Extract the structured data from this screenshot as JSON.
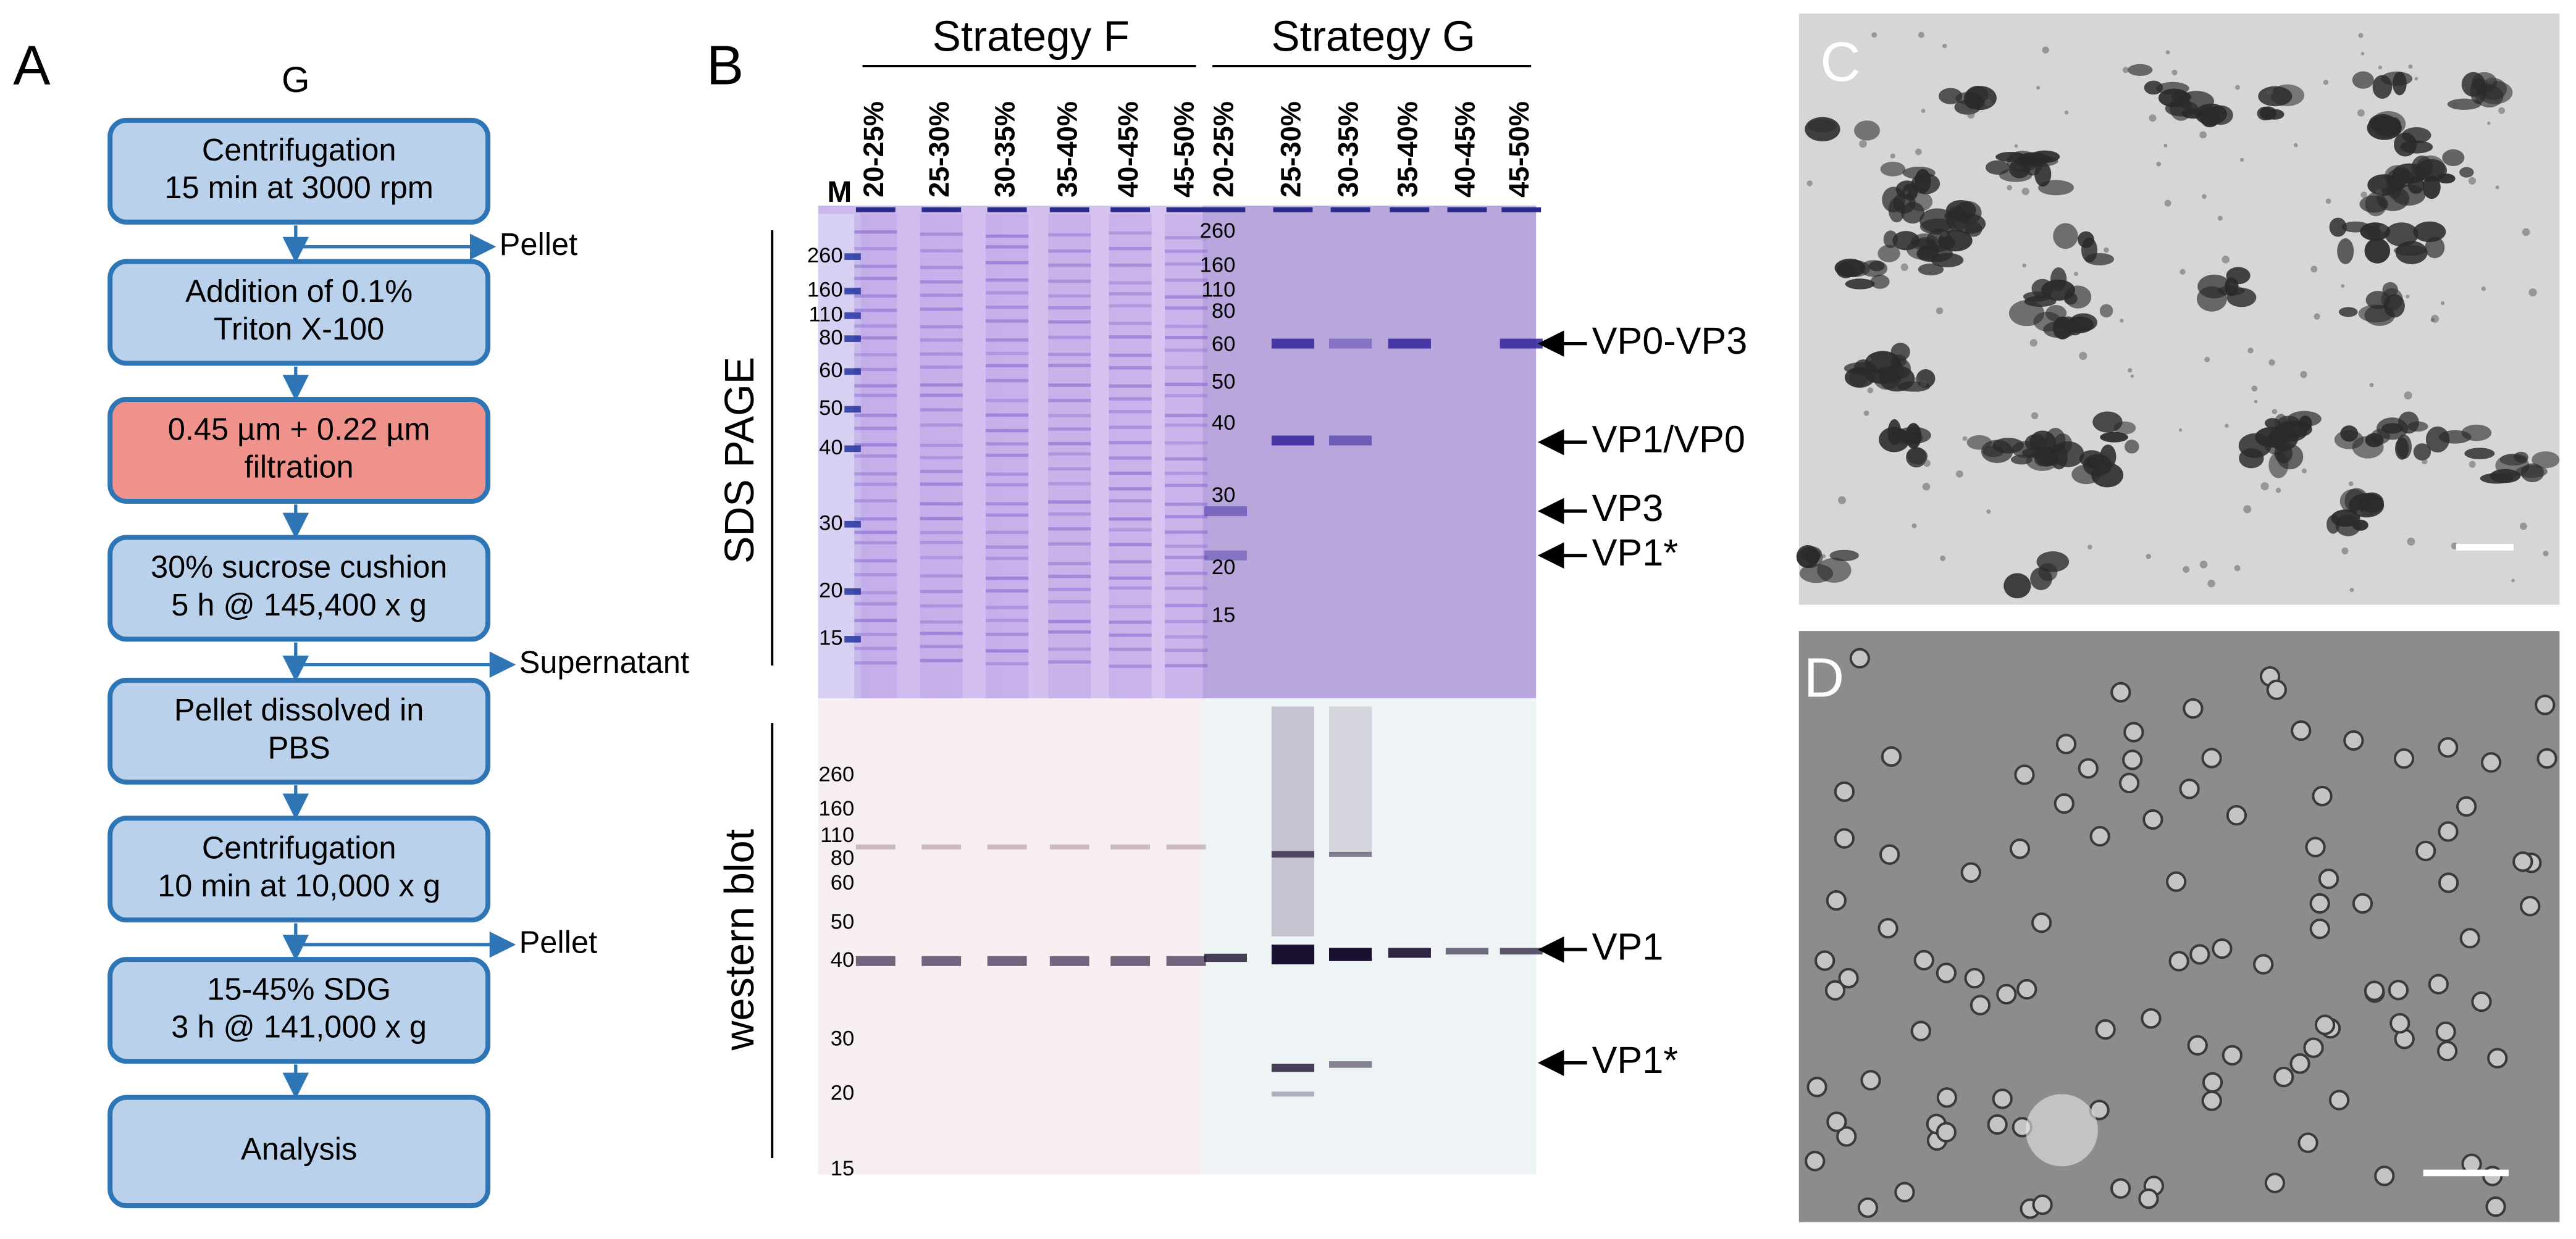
{
  "panels": {
    "A": {
      "label": "A",
      "title": "G",
      "steps": [
        {
          "lines": [
            "Centrifugation",
            "15 min at 3000 rpm"
          ],
          "output": "Pellet"
        },
        {
          "lines": [
            "Addition of 0.1%",
            "Triton X-100"
          ]
        },
        {
          "lines": [
            "0.45 µm + 0.22 µm",
            "filtration"
          ]
        },
        {
          "lines": [
            "30% sucrose cushion",
            "5 h @ 145,400 x g"
          ],
          "output": "Supernatant"
        },
        {
          "lines": [
            "Pellet dissolved in",
            "PBS"
          ]
        },
        {
          "lines": [
            "Centrifugation",
            "10 min at 10,000 x g"
          ],
          "output": "Pellet"
        },
        {
          "lines": [
            "15-45% SDG",
            "3 h @ 141,000 x g"
          ]
        },
        {
          "lines": [
            "Analysis"
          ]
        }
      ]
    },
    "B": {
      "label": "B",
      "marker_lane": "M",
      "strategies": [
        {
          "name": "Strategy F",
          "lanes": [
            "20-25%",
            "25-30%",
            "30-35%",
            "35-40%",
            "40-45%",
            "45-50%"
          ]
        },
        {
          "name": "Strategy G",
          "lanes": [
            "20-25%",
            "25-30%",
            "30-35%",
            "35-40%",
            "40-45%",
            "45-50%"
          ]
        }
      ],
      "rows": [
        "SDS PAGE",
        "western blot"
      ],
      "ladders": {
        "sds_f": [
          260,
          160,
          110,
          80,
          60,
          50,
          40,
          30,
          20,
          15
        ],
        "sds_g": [
          260,
          160,
          110,
          80,
          60,
          50,
          40,
          30,
          20,
          15
        ],
        "western": [
          260,
          160,
          110,
          80,
          60,
          50,
          40,
          30,
          20,
          15
        ]
      },
      "bands": {
        "sds": [
          "VP0-VP3",
          "VP1/VP0",
          "VP3",
          "VP1*"
        ],
        "western": [
          "VP1",
          "VP1*"
        ]
      }
    },
    "C": {
      "label": "C"
    },
    "D": {
      "label": "D"
    }
  }
}
